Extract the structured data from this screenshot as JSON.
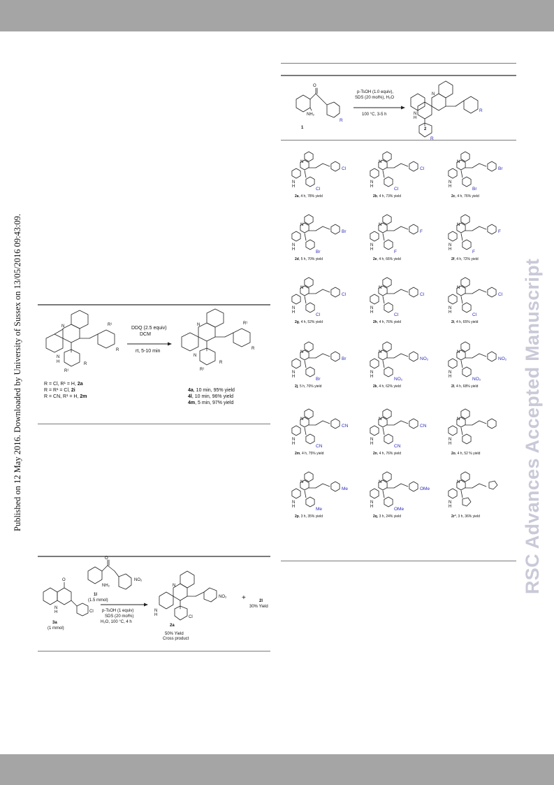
{
  "margin_note": "Published on 12 May 2016. Downloaded by University of Sussex on 13/05/2016 09:43:09.",
  "watermark": "RSC Advances Accepted Manuscript",
  "scheme_main": {
    "conditions": [
      "p-TsOH (1.0 equiv),",
      "SDS (20 mol%), H₂O",
      "100 °C, 3-5 h"
    ],
    "reactant_label": "1",
    "product_label": "2",
    "atoms": {
      "n": "N",
      "nh2": "NH₂",
      "o": "O",
      "h": "H",
      "r": "R"
    }
  },
  "compounds": [
    {
      "id": "2a",
      "label": "2a",
      "text": ", 4 h, 78% yield",
      "subs": [
        "Cl",
        "Cl"
      ]
    },
    {
      "id": "2b",
      "label": "2b",
      "text": ", 4 h, 73% yield",
      "subs": [
        "Cl",
        "Cl"
      ]
    },
    {
      "id": "2c",
      "label": "2c",
      "text": ", 4 h, 76% yield",
      "subs": [
        "Br",
        "Br"
      ]
    },
    {
      "id": "2d",
      "label": "2d",
      "text": ", 5 h, 70% yield",
      "subs": [
        "Br",
        "Br"
      ]
    },
    {
      "id": "2e",
      "label": "2e",
      "text": ", 4 h, 66% yield",
      "subs": [
        "F",
        "F"
      ]
    },
    {
      "id": "2f",
      "label": "2f",
      "text": ", 4 h, 72% yield",
      "subs": [
        "F",
        "F"
      ]
    },
    {
      "id": "2g",
      "label": "2g",
      "text": ", 4 h, 52% yield",
      "subs": [
        "Cl",
        "Cl"
      ]
    },
    {
      "id": "2h",
      "label": "2h",
      "text": ", 4 h, 76% yield",
      "subs": [
        "Cl",
        "Cl"
      ]
    },
    {
      "id": "2i",
      "label": "2i",
      "text": ", 4 h, 65% yield",
      "subs": [
        "Cl",
        "Cl"
      ]
    },
    {
      "id": "2j",
      "label": "2j",
      "text": ", 5 h, 70% yield",
      "subs": [
        "Br",
        "Br"
      ]
    },
    {
      "id": "2k",
      "label": "2k",
      "text": ", 4 h, 62% yield",
      "subs": [
        "NO₂",
        "NO₂"
      ]
    },
    {
      "id": "2l",
      "label": "2l",
      "text": ", 4 h, 68% yield",
      "subs": [
        "NO₂",
        "NO₂"
      ]
    },
    {
      "id": "2m",
      "label": "2m",
      "text": ", 4 h, 75% yield",
      "subs": [
        "CN",
        "CN"
      ]
    },
    {
      "id": "2n",
      "label": "2n",
      "text": ", 4 h, 76% yield",
      "subs": [
        "CN",
        "CN"
      ]
    },
    {
      "id": "2o",
      "label": "2o",
      "text": ", 4 h, 52 % yield",
      "subs": [
        "",
        ""
      ]
    },
    {
      "id": "2p",
      "label": "2p",
      "text": ", 3 h, 35% yield",
      "subs": [
        "Me",
        "Me"
      ]
    },
    {
      "id": "2q",
      "label": "2q",
      "text": ", 3 h, 24% yield",
      "subs": [
        "OMe",
        "OMe"
      ]
    },
    {
      "id": "2r",
      "label": "2r",
      "sup": "a",
      "text": ", 3 h, 36% yield",
      "subs": [
        "",
        ""
      ]
    }
  ],
  "scheme_oxidation": {
    "reagent": "DDQ (2.5 equiv)",
    "solvent": "DCM",
    "conditions": "rt, 5-10 min",
    "substrates": [
      {
        "text": "R = Cl, R¹ = H, ",
        "label": "2a"
      },
      {
        "text": "R = R¹ = Cl, ",
        "label": "2i"
      },
      {
        "text": "R = CN, R¹ = H, ",
        "label": "2m"
      }
    ],
    "products": [
      {
        "label": "4a",
        "text": ", 10 min, 95% yield"
      },
      {
        "label": "4l",
        "text": ", 10 min, 96% yield"
      },
      {
        "label": "4m",
        "text": ", 5 min, 97% yield"
      }
    ],
    "atoms": {
      "r1": "R¹",
      "r": "R",
      "n": "N",
      "h": "H"
    }
  },
  "scheme_cross": {
    "reagent_label": "1l",
    "reagent_amount": "(1.5 mmol)",
    "substrate_label": "3a",
    "substrate_amount": "(1 mmol)",
    "conditions": [
      "p-TsOH (1 equiv)",
      "SDS (20 mol%)",
      "H₂O, 100 °C, 4 h"
    ],
    "product_label": "2a",
    "product_yield": "50% Yield",
    "product_note": "Cross product",
    "plus": "+",
    "side_label": "2l",
    "side_yield": "30% Yield",
    "atoms": {
      "o": "O",
      "nh2": "NH₂",
      "no2": "NO₂",
      "cl": "Cl",
      "n": "N",
      "h": "H"
    }
  }
}
